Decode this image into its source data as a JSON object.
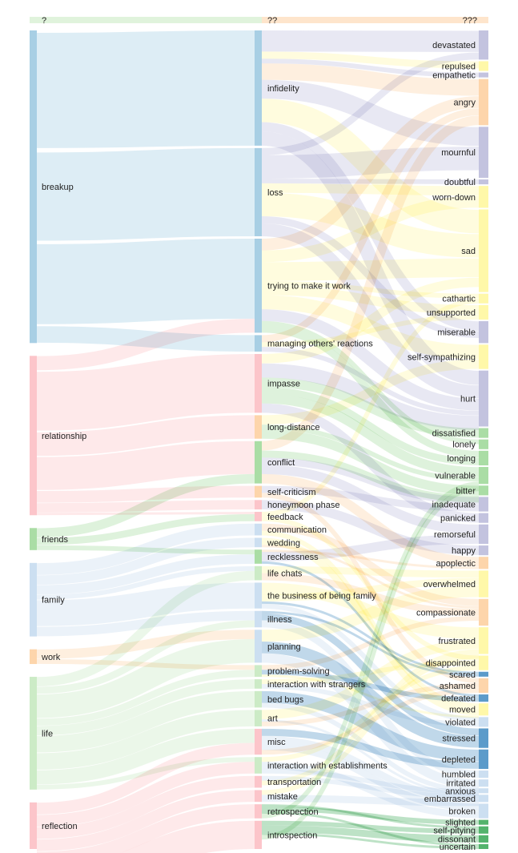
{
  "columns": {
    "left_header": "?",
    "middle_header": "??",
    "right_header": "???"
  },
  "colors": {
    "blue": "#9ecae1",
    "pink": "#fcbfc4",
    "green": "#a1d99b",
    "lightgreen": "#c7e9c0",
    "orange": "#fdd0a2",
    "purple": "#bcbddc",
    "yellow": "#fff7a0",
    "darkblue": "#4a90c4",
    "lightblue": "#c6dbef",
    "darkgreen": "#41ab5d"
  },
  "sources": [
    {
      "label": "breakup",
      "color": "blue",
      "value": 255
    },
    {
      "label": "relationship",
      "color": "pink",
      "value": 130
    },
    {
      "label": "friends",
      "color": "green",
      "value": 18
    },
    {
      "label": "family",
      "color": "lightblue",
      "value": 60
    },
    {
      "label": "work",
      "color": "orange",
      "value": 12
    },
    {
      "label": "life",
      "color": "lightgreen",
      "value": 92
    },
    {
      "label": "reflection",
      "color": "pink",
      "value": 38
    }
  ],
  "topics": [
    {
      "label": "infidelity",
      "color": "blue",
      "value": 98
    },
    {
      "label": "loss",
      "color": "blue",
      "value": 75
    },
    {
      "label": "trying to make it work",
      "color": "blue",
      "value": 80
    },
    {
      "label": "managing others' reactions",
      "color": "blue",
      "value": 14
    },
    {
      "label": "impasse",
      "color": "pink",
      "value": 50
    },
    {
      "label": "long-distance",
      "color": "orange",
      "value": 20
    },
    {
      "label": "conflict",
      "color": "green",
      "value": 36
    },
    {
      "label": "self-criticism",
      "color": "orange",
      "value": 10
    },
    {
      "label": "honeymoon phase",
      "color": "pink",
      "value": 8
    },
    {
      "label": "feedback",
      "color": "pink",
      "value": 8
    },
    {
      "label": "communication",
      "color": "lightblue",
      "value": 10
    },
    {
      "label": "wedding",
      "color": "lightblue",
      "value": 8
    },
    {
      "label": "recklessness",
      "color": "green",
      "value": 12
    },
    {
      "label": "life chats",
      "color": "lightgreen",
      "value": 12
    },
    {
      "label": "the business of being family",
      "color": "lightblue",
      "value": 22
    },
    {
      "label": "illness",
      "color": "lightblue",
      "value": 14
    },
    {
      "label": "planning",
      "color": "lightblue",
      "value": 28
    },
    {
      "label": "problem-solving",
      "color": "lightgreen",
      "value": 10
    },
    {
      "label": "interaction with strangers",
      "color": "lightgreen",
      "value": 8
    },
    {
      "label": "bed bugs",
      "color": "lightgreen",
      "value": 14
    },
    {
      "label": "art",
      "color": "lightgreen",
      "value": 14
    },
    {
      "label": "misc",
      "color": "pink",
      "value": 22
    },
    {
      "label": "interaction with establishments",
      "color": "lightgreen",
      "value": 14
    },
    {
      "label": "transportation",
      "color": "pink",
      "value": 10
    },
    {
      "label": "mistake",
      "color": "pink",
      "value": 10
    },
    {
      "label": "retrospection",
      "color": "pink",
      "value": 12
    },
    {
      "label": "introspection",
      "color": "pink",
      "value": 24
    }
  ],
  "feelings": [
    {
      "label": "devastated",
      "color": "purple",
      "value": 24
    },
    {
      "label": "repulsed",
      "color": "yellow",
      "value": 8
    },
    {
      "label": "empathetic",
      "color": "purple",
      "value": 4
    },
    {
      "label": "angry",
      "color": "orange",
      "value": 38
    },
    {
      "label": "mournful",
      "color": "purple",
      "value": 42
    },
    {
      "label": "doubtful",
      "color": "purple",
      "value": 4
    },
    {
      "label": "worn-down",
      "color": "yellow",
      "value": 18
    },
    {
      "label": "sad",
      "color": "yellow",
      "value": 68
    },
    {
      "label": "cathartic",
      "color": "yellow",
      "value": 8
    },
    {
      "label": "unsupported",
      "color": "yellow",
      "value": 12
    },
    {
      "label": "miserable",
      "color": "purple",
      "value": 18
    },
    {
      "label": "self-sympathizing",
      "color": "yellow",
      "value": 20
    },
    {
      "label": "hurt",
      "color": "purple",
      "value": 46
    },
    {
      "label": "dissatisfied",
      "color": "green",
      "value": 8
    },
    {
      "label": "lonely",
      "color": "green",
      "value": 8
    },
    {
      "label": "longing",
      "color": "green",
      "value": 12
    },
    {
      "label": "vulnerable",
      "color": "green",
      "value": 14
    },
    {
      "label": "bitter",
      "color": "green",
      "value": 8
    },
    {
      "label": "inadequate",
      "color": "purple",
      "value": 12
    },
    {
      "label": "panicked",
      "color": "purple",
      "value": 8
    },
    {
      "label": "remorseful",
      "color": "purple",
      "value": 16
    },
    {
      "label": "happy",
      "color": "purple",
      "value": 8
    },
    {
      "label": "apoplectic",
      "color": "orange",
      "value": 10
    },
    {
      "label": "overwhelmed",
      "color": "yellow",
      "value": 22
    },
    {
      "label": "compassionate",
      "color": "orange",
      "value": 22
    },
    {
      "label": "frustrated",
      "color": "yellow",
      "value": 22
    },
    {
      "label": "disappointed",
      "color": "yellow",
      "value": 12
    },
    {
      "label": "scared",
      "color": "darkblue",
      "value": 4
    },
    {
      "label": "ashamed",
      "color": "orange",
      "value": 12
    },
    {
      "label": "defeated",
      "color": "darkblue",
      "value": 6
    },
    {
      "label": "moved",
      "color": "yellow",
      "value": 10
    },
    {
      "label": "violated",
      "color": "lightblue",
      "value": 8
    },
    {
      "label": "stressed",
      "color": "darkblue",
      "value": 16
    },
    {
      "label": "depleted",
      "color": "darkblue",
      "value": 16
    },
    {
      "label": "humbled",
      "color": "lightblue",
      "value": 6
    },
    {
      "label": "irritated",
      "color": "lightblue",
      "value": 6
    },
    {
      "label": "anxious",
      "color": "lightblue",
      "value": 4
    },
    {
      "label": "embarrassed",
      "color": "lightblue",
      "value": 6
    },
    {
      "label": "broken",
      "color": "lightblue",
      "value": 12
    },
    {
      "label": "slighted",
      "color": "darkgreen",
      "value": 4
    },
    {
      "label": "self-pitying",
      "color": "darkgreen",
      "value": 6
    },
    {
      "label": "dissonant",
      "color": "darkgreen",
      "value": 6
    },
    {
      "label": "uncertain",
      "color": "darkgreen",
      "value": 4
    }
  ],
  "links_st": [
    [
      0,
      0,
      98
    ],
    [
      0,
      1,
      75
    ],
    [
      0,
      2,
      68
    ],
    [
      0,
      3,
      14
    ],
    [
      1,
      2,
      12
    ],
    [
      1,
      4,
      50
    ],
    [
      1,
      5,
      20
    ],
    [
      1,
      6,
      28
    ],
    [
      1,
      7,
      10
    ],
    [
      1,
      8,
      8
    ],
    [
      1,
      9,
      2
    ],
    [
      2,
      6,
      8
    ],
    [
      2,
      9,
      6
    ],
    [
      2,
      12,
      4
    ],
    [
      3,
      10,
      10
    ],
    [
      3,
      11,
      8
    ],
    [
      3,
      12,
      8
    ],
    [
      3,
      13,
      4
    ],
    [
      3,
      14,
      22
    ],
    [
      3,
      15,
      8
    ],
    [
      4,
      16,
      8
    ],
    [
      4,
      17,
      4
    ],
    [
      5,
      13,
      8
    ],
    [
      5,
      15,
      6
    ],
    [
      5,
      16,
      20
    ],
    [
      5,
      17,
      6
    ],
    [
      5,
      18,
      8
    ],
    [
      5,
      19,
      14
    ],
    [
      5,
      20,
      14
    ],
    [
      5,
      21,
      12
    ],
    [
      5,
      22,
      4
    ],
    [
      6,
      21,
      10
    ],
    [
      6,
      22,
      10
    ],
    [
      6,
      23,
      10
    ],
    [
      6,
      24,
      10
    ],
    [
      6,
      25,
      12
    ],
    [
      6,
      26,
      24
    ]
  ],
  "links_tf": [
    [
      0,
      0,
      18
    ],
    [
      0,
      1,
      6
    ],
    [
      0,
      2,
      4
    ],
    [
      0,
      3,
      14
    ],
    [
      0,
      4,
      16
    ],
    [
      0,
      7,
      20
    ],
    [
      0,
      10,
      8
    ],
    [
      0,
      12,
      12
    ],
    [
      1,
      0,
      6
    ],
    [
      1,
      4,
      20
    ],
    [
      1,
      5,
      4
    ],
    [
      1,
      6,
      8
    ],
    [
      1,
      7,
      20
    ],
    [
      1,
      10,
      6
    ],
    [
      1,
      12,
      11
    ],
    [
      2,
      3,
      10
    ],
    [
      2,
      6,
      10
    ],
    [
      2,
      7,
      16
    ],
    [
      2,
      8,
      4
    ],
    [
      2,
      9,
      8
    ],
    [
      2,
      11,
      12
    ],
    [
      2,
      12,
      10
    ],
    [
      2,
      14,
      4
    ],
    [
      2,
      15,
      6
    ],
    [
      3,
      3,
      6
    ],
    [
      3,
      9,
      4
    ],
    [
      3,
      12,
      4
    ],
    [
      4,
      7,
      8
    ],
    [
      4,
      12,
      12
    ],
    [
      4,
      13,
      8
    ],
    [
      4,
      15,
      6
    ],
    [
      4,
      16,
      8
    ],
    [
      4,
      19,
      8
    ],
    [
      5,
      11,
      8
    ],
    [
      5,
      16,
      4
    ],
    [
      5,
      17,
      8
    ],
    [
      6,
      3,
      8
    ],
    [
      6,
      13,
      0
    ],
    [
      6,
      17,
      6
    ],
    [
      6,
      18,
      6
    ],
    [
      6,
      20,
      8
    ],
    [
      6,
      22,
      8
    ],
    [
      7,
      18,
      6
    ],
    [
      7,
      28,
      4
    ],
    [
      8,
      21,
      8
    ],
    [
      9,
      8,
      4
    ],
    [
      9,
      26,
      4
    ],
    [
      10,
      24,
      6
    ],
    [
      10,
      30,
      4
    ],
    [
      11,
      21,
      0
    ],
    [
      11,
      30,
      6
    ],
    [
      11,
      24,
      2
    ],
    [
      12,
      22,
      2
    ],
    [
      12,
      20,
      8
    ],
    [
      12,
      29,
      2
    ],
    [
      13,
      23,
      6
    ],
    [
      13,
      24,
      6
    ],
    [
      14,
      25,
      10
    ],
    [
      14,
      23,
      6
    ],
    [
      14,
      27,
      2
    ],
    [
      14,
      31,
      4
    ],
    [
      15,
      27,
      2
    ],
    [
      15,
      32,
      6
    ],
    [
      15,
      34,
      6
    ],
    [
      16,
      23,
      10
    ],
    [
      16,
      32,
      10
    ],
    [
      16,
      35,
      8
    ],
    [
      17,
      24,
      4
    ],
    [
      17,
      29,
      4
    ],
    [
      17,
      30,
      2
    ],
    [
      18,
      26,
      4
    ],
    [
      18,
      31,
      4
    ],
    [
      19,
      33,
      10
    ],
    [
      19,
      36,
      4
    ],
    [
      20,
      25,
      8
    ],
    [
      20,
      34,
      0
    ],
    [
      20,
      36,
      2
    ],
    [
      20,
      28,
      4
    ],
    [
      21,
      33,
      6
    ],
    [
      21,
      37,
      6
    ],
    [
      21,
      38,
      6
    ],
    [
      21,
      31,
      0
    ],
    [
      21,
      28,
      4
    ],
    [
      22,
      26,
      4
    ],
    [
      22,
      38,
      6
    ],
    [
      22,
      37,
      0
    ],
    [
      22,
      35,
      4
    ],
    [
      23,
      35,
      4
    ],
    [
      23,
      29,
      0
    ],
    [
      23,
      38,
      0
    ],
    [
      23,
      36,
      0
    ],
    [
      23,
      39,
      0
    ],
    [
      23,
      33,
      0
    ],
    [
      23,
      31,
      0
    ],
    [
      23,
      25,
      4
    ],
    [
      23,
      32,
      0
    ],
    [
      24,
      28,
      0
    ],
    [
      24,
      29,
      0
    ],
    [
      24,
      38,
      0
    ],
    [
      24,
      39,
      0
    ],
    [
      24,
      36,
      0
    ],
    [
      24,
      18,
      0
    ],
    [
      24,
      30,
      0
    ],
    [
      24,
      25,
      4
    ],
    [
      24,
      21,
      0
    ],
    [
      24,
      34,
      0
    ],
    [
      24,
      26,
      0
    ],
    [
      24,
      27,
      0
    ],
    [
      24,
      35,
      6
    ],
    [
      25,
      40,
      2
    ],
    [
      25,
      39,
      4
    ],
    [
      25,
      42,
      2
    ],
    [
      25,
      28,
      0
    ],
    [
      25,
      16,
      4
    ],
    [
      26,
      40,
      4
    ],
    [
      26,
      41,
      6
    ],
    [
      26,
      42,
      2
    ],
    [
      26,
      29,
      0
    ],
    [
      26,
      38,
      0
    ],
    [
      26,
      16,
      4
    ],
    [
      26,
      19,
      0
    ],
    [
      26,
      28,
      0
    ],
    [
      26,
      25,
      0
    ],
    [
      26,
      21,
      0
    ],
    [
      26,
      31,
      0
    ],
    [
      26,
      33,
      0
    ],
    [
      26,
      34,
      0
    ],
    [
      26,
      36,
      0
    ],
    [
      26,
      37,
      0
    ],
    [
      26,
      39,
      0
    ],
    [
      26,
      20,
      0
    ],
    [
      26,
      22,
      0
    ],
    [
      26,
      23,
      0
    ],
    [
      26,
      24,
      0
    ],
    [
      26,
      26,
      0
    ],
    [
      26,
      27,
      0
    ],
    [
      26,
      30,
      0
    ],
    [
      26,
      32,
      0
    ],
    [
      26,
      35,
      0
    ]
  ]
}
